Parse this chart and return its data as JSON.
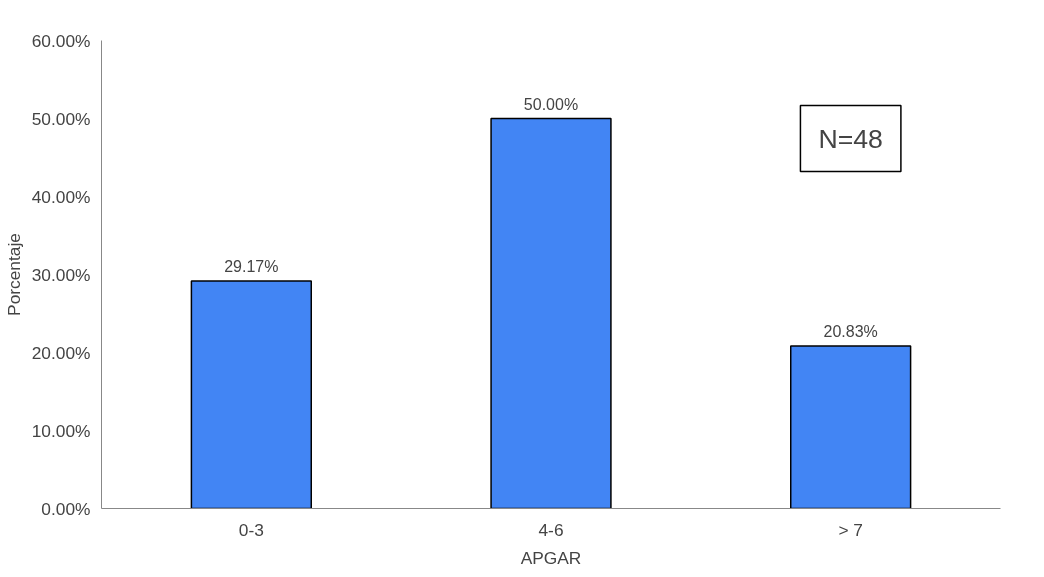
{
  "chart_data": {
    "type": "bar",
    "xlabel": "APGAR",
    "ylabel": "Porcentaje",
    "categories": [
      "0-3",
      "4-6",
      "> 7"
    ],
    "values": [
      29.17,
      50.0,
      20.83
    ],
    "value_labels": [
      "29.17%",
      "50.00%",
      "20.83%"
    ],
    "color": "#4285f4",
    "ylim": [
      0,
      60
    ],
    "yticks": [
      {
        "value": 0,
        "label": "0.00%"
      },
      {
        "value": 10,
        "label": "10.00%"
      },
      {
        "value": 20,
        "label": "20.00%"
      },
      {
        "value": 30,
        "label": "30.00%"
      },
      {
        "value": 40,
        "label": "40.00%"
      },
      {
        "value": 50,
        "label": "50.00%"
      },
      {
        "value": 60,
        "label": "60.00%"
      }
    ],
    "annotations": [
      "N=48"
    ],
    "grid": false
  }
}
